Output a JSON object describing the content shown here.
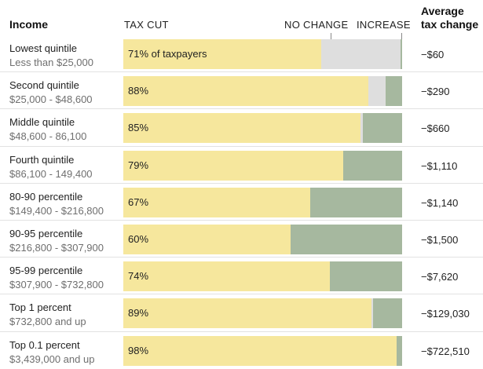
{
  "chart_data": {
    "type": "bar",
    "orientation": "horizontal",
    "stacked": true,
    "header": {
      "income": "Income",
      "tax_cut": "TAX CUT",
      "no_change": "NO CHANGE",
      "increase": "INCREASE",
      "avg_line1": "Average",
      "avg_line2": "tax change"
    },
    "colors": {
      "tax_cut": "#f6e79d",
      "no_change": "#dedede",
      "increase": "#a6b89f"
    },
    "xlim": [
      0,
      100
    ],
    "rows": [
      {
        "label": "Lowest quintile",
        "range": "Less than $25,000",
        "tax_cut": 71,
        "no_change": 28.4,
        "increase": 0.6,
        "pct_label": "71% of taxpayers",
        "avg_change": "−$60"
      },
      {
        "label": "Second quintile",
        "range": "$25,000 - $48,600",
        "tax_cut": 88,
        "no_change": 6,
        "increase": 6,
        "pct_label": "88%",
        "avg_change": "−$290"
      },
      {
        "label": "Middle quintile",
        "range": "$48,600 - 86,100",
        "tax_cut": 85,
        "no_change": 1,
        "increase": 14,
        "pct_label": "85%",
        "avg_change": "−$660"
      },
      {
        "label": "Fourth quintile",
        "range": "$86,100 - 149,400",
        "tax_cut": 79,
        "no_change": 0,
        "increase": 21,
        "pct_label": "79%",
        "avg_change": "−$1,110"
      },
      {
        "label": "80-90 percentile",
        "range": "$149,400 - $216,800",
        "tax_cut": 67,
        "no_change": 0,
        "increase": 33,
        "pct_label": "67%",
        "avg_change": "−$1,140"
      },
      {
        "label": "90-95 percentile",
        "range": "$216,800 - $307,900",
        "tax_cut": 60,
        "no_change": 0,
        "increase": 40,
        "pct_label": "60%",
        "avg_change": "−$1,500"
      },
      {
        "label": "95-99 percentile",
        "range": "$307,900 - $732,800",
        "tax_cut": 74,
        "no_change": 0,
        "increase": 26,
        "pct_label": "74%",
        "avg_change": "−$7,620"
      },
      {
        "label": "Top 1 percent",
        "range": "$732,800 and up",
        "tax_cut": 89,
        "no_change": 0.5,
        "increase": 10.5,
        "pct_label": "89%",
        "avg_change": "−$129,030"
      },
      {
        "label": "Top 0.1 percent",
        "range": "$3,439,000 and up",
        "tax_cut": 98,
        "no_change": 0,
        "increase": 2,
        "pct_label": "98%",
        "avg_change": "−$722,510"
      }
    ]
  }
}
